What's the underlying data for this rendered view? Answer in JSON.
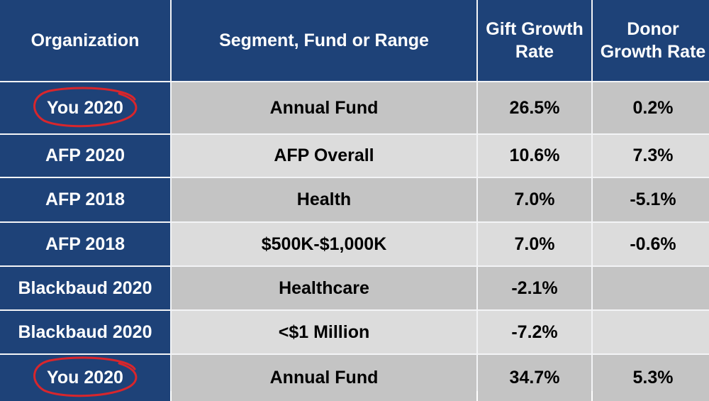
{
  "chart_data": {
    "type": "table",
    "headers": [
      "Organization",
      "Segment, Fund or Range",
      "Gift Growth Rate",
      "Donor Growth Rate"
    ],
    "header_lines": [
      [
        "Organization"
      ],
      [
        "Segment, Fund or Range"
      ],
      [
        "Gift Growth",
        "Rate"
      ],
      [
        "Donor",
        "Growth Rate"
      ]
    ],
    "rows": [
      {
        "organization": "You 2020",
        "segment": "Annual Fund",
        "gift_growth_rate": "26.5%",
        "donor_growth_rate": "0.2%",
        "circled": true
      },
      {
        "organization": "AFP 2020",
        "segment": "AFP Overall",
        "gift_growth_rate": "10.6%",
        "donor_growth_rate": "7.3%",
        "circled": false
      },
      {
        "organization": "AFP 2018",
        "segment": "Health",
        "gift_growth_rate": "7.0%",
        "donor_growth_rate": "-5.1%",
        "circled": false
      },
      {
        "organization": "AFP  2018",
        "segment": "$500K-$1,000K",
        "gift_growth_rate": "7.0%",
        "donor_growth_rate": "-0.6%",
        "circled": false
      },
      {
        "organization": "Blackbaud 2020",
        "segment": "Healthcare",
        "gift_growth_rate": "-2.1%",
        "donor_growth_rate": "",
        "circled": false
      },
      {
        "organization": "Blackbaud 2020",
        "segment": "<$1 Million",
        "gift_growth_rate": "-7.2%",
        "donor_growth_rate": "",
        "circled": false
      },
      {
        "organization": "You 2020",
        "segment": "Annual Fund",
        "gift_growth_rate": "34.7%",
        "donor_growth_rate": "5.3%",
        "circled": true
      }
    ]
  },
  "colors": {
    "header_bg": "#1e4278",
    "header_text": "#ffffff",
    "row_dark": "#c4c4c4",
    "row_light": "#dcdcdc",
    "circle": "#d8262c"
  }
}
